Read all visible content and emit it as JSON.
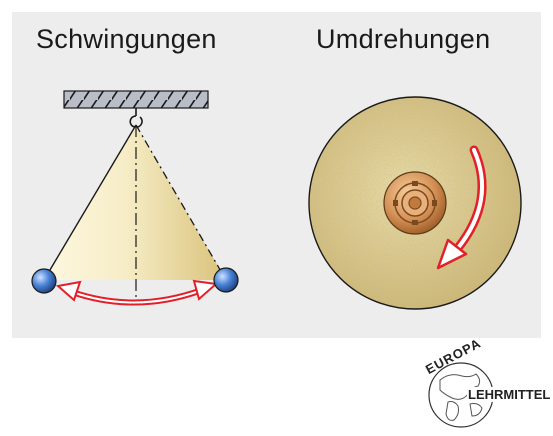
{
  "panels": {
    "left_title": "Schwingungen",
    "right_title": "Umdrehungen"
  },
  "logo": {
    "word_top": "EUROPA",
    "word_bottom": "LEHRMITTEL"
  },
  "colors": {
    "panel_bg": "#ededed",
    "cone_fill": "#f2e6b4",
    "arrow_red": "#e3202a",
    "ball_blue": "#3a6fc4",
    "disc_fill": "#d8c78a",
    "hub_copper": "#d08a4a"
  }
}
